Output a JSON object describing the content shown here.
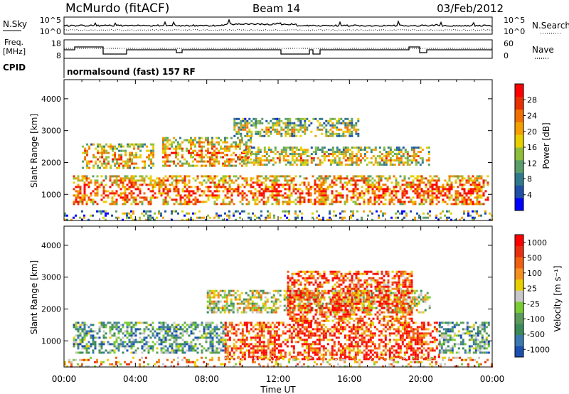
{
  "header": {
    "station": "McMurdo (fitACF)",
    "beam": "Beam 14",
    "date": "03/Feb/2012"
  },
  "top_panel": {
    "nsky_label": "N.Sky",
    "freq_label_1": "Freq.",
    "freq_label_2": "[MHz]",
    "cpid_label": "CPID",
    "nsearch_label": "N.Search",
    "nave_label": "Nave",
    "nsky_ticks": [
      "10^5",
      "10^0"
    ],
    "freq_ticks": [
      "18",
      "8"
    ],
    "nsearch_ticks": [
      "10^5",
      "10^0"
    ],
    "nave_ticks": [
      "60",
      "0"
    ],
    "cpid_text": "normalsound (fast) 157 RF"
  },
  "colors": {
    "power_scale": [
      "#0000ff",
      "#1f4fa8",
      "#2f7a8a",
      "#5a9e6a",
      "#8fbf3a",
      "#e8d000",
      "#f5a000",
      "#f07000",
      "#e83000",
      "#ff0000"
    ],
    "velocity_scale": [
      "#1a4fb0",
      "#3a7ab0",
      "#3a8a5a",
      "#5a9a5a",
      "#7acc33",
      "#c8c8c8",
      "#e8d000",
      "#f59020",
      "#f06010",
      "#e83010",
      "#ff0000"
    ]
  },
  "chart_data": [
    {
      "type": "heatmap",
      "name": "power",
      "ylabel": "Slant Range [km]",
      "xlabel": "",
      "x_ticks": [
        "00:00",
        "04:00",
        "08:00",
        "12:00",
        "16:00",
        "20:00",
        "00:00"
      ],
      "y_ticks": [
        "1000",
        "2000",
        "3000",
        "4000"
      ],
      "ylim": [
        180,
        4600
      ],
      "xlim_hours": [
        0,
        24
      ],
      "colorbar_label": "Power [dB]",
      "colorbar_ticks": [
        "4",
        "8",
        "12",
        "16",
        "20",
        "24",
        "28"
      ],
      "colorbar_range": [
        0,
        32
      ],
      "bands": [
        {
          "t0": 0.5,
          "t1": 23.8,
          "r0": 700,
          "r1": 1600,
          "level": 0.6
        },
        {
          "t0": 1.0,
          "t1": 5.0,
          "r0": 1800,
          "r1": 2600,
          "level": 0.45
        },
        {
          "t0": 5.5,
          "t1": 10.5,
          "r0": 1900,
          "r1": 2800,
          "level": 0.5
        },
        {
          "t0": 10.0,
          "t1": 20.5,
          "r0": 1900,
          "r1": 2500,
          "level": 0.4
        },
        {
          "t0": 9.5,
          "t1": 16.5,
          "r0": 2800,
          "r1": 3400,
          "level": 0.3
        }
      ]
    },
    {
      "type": "heatmap",
      "name": "velocity",
      "ylabel": "Slant Range [km]",
      "xlabel": "Time UT",
      "x_ticks": [
        "00:00",
        "04:00",
        "08:00",
        "12:00",
        "16:00",
        "20:00",
        "00:00"
      ],
      "y_ticks": [
        "1000",
        "2000",
        "3000",
        "4000"
      ],
      "ylim": [
        180,
        4600
      ],
      "xlim_hours": [
        0,
        24
      ],
      "colorbar_label": "Velocity [m s⁻¹]",
      "colorbar_ticks": [
        "1000",
        "500",
        "100",
        "25",
        "-25",
        "-100",
        "-500",
        "-1000"
      ],
      "bands": [
        {
          "t0": 0.5,
          "t1": 9.0,
          "r0": 600,
          "r1": 1600,
          "level": 0.3
        },
        {
          "t0": 9.0,
          "t1": 21.0,
          "r0": 400,
          "r1": 1600,
          "level": 0.85
        },
        {
          "t0": 8.0,
          "t1": 20.5,
          "r0": 1900,
          "r1": 2600,
          "level": 0.5
        },
        {
          "t0": 12.5,
          "t1": 19.5,
          "r0": 1600,
          "r1": 3200,
          "level": 0.8
        },
        {
          "t0": 21.0,
          "t1": 23.8,
          "r0": 600,
          "r1": 1600,
          "level": 0.3
        }
      ]
    }
  ]
}
